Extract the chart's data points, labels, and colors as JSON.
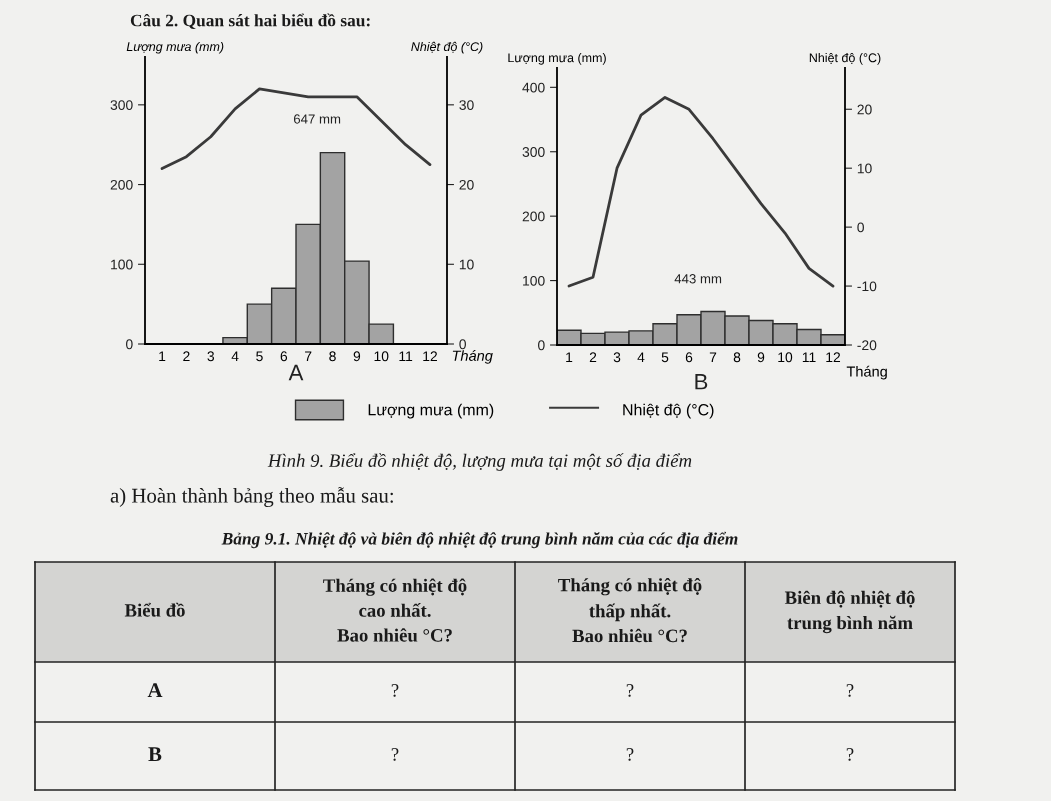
{
  "chart_data": [
    {
      "type": "other",
      "title": "Câu 2. Quan sát hai biểu đồ sau:"
    },
    {
      "type": "bar",
      "title": "A",
      "xlabel": "Tháng",
      "ylabel": "Lượng mưa (mm)",
      "y2label": "Nhiệt độ (°C)",
      "categories": [
        "1",
        "2",
        "3",
        "4",
        "5",
        "6",
        "7",
        "8",
        "9",
        "10",
        "11",
        "12"
      ],
      "series": [
        {
          "name": "Lượng mưa (mm)",
          "color": "#a3a3a3",
          "values": [
            0,
            0,
            0,
            8,
            50,
            70,
            150,
            240,
            104,
            25,
            0,
            0
          ]
        },
        {
          "name": "Nhiệt độ (°C)",
          "type": "line",
          "axis": "y2",
          "color": "#3a3a3a",
          "values": [
            22,
            23.5,
            26,
            29.5,
            32,
            31.5,
            31,
            31,
            31,
            28,
            25,
            22.5
          ]
        }
      ],
      "ylim": [
        0,
        360
      ],
      "yticks": [
        0,
        100,
        200,
        300
      ],
      "y2lim": [
        0,
        36
      ],
      "y2ticks": [
        0,
        10,
        20,
        30
      ],
      "annotations": [
        "647 mm"
      ],
      "legend": "bottom"
    },
    {
      "type": "bar",
      "title": "B",
      "xlabel": "Tháng",
      "ylabel": "Lượng mưa (mm)",
      "y2label": "Nhiệt độ (°C)",
      "categories": [
        "1",
        "2",
        "3",
        "4",
        "5",
        "6",
        "7",
        "8",
        "9",
        "10",
        "11",
        "12"
      ],
      "series": [
        {
          "color": "#a3a3a3",
          "values": [
            23,
            18,
            20,
            22,
            33,
            47,
            52,
            45,
            38,
            33,
            24,
            16
          ]
        },
        {
          "type": "line",
          "axis": "y2",
          "color": "#3a3a3a",
          "values": [
            -10,
            -8.5,
            10,
            19,
            22,
            20,
            15,
            9.5,
            4,
            -1,
            -7,
            -10
          ]
        }
      ],
      "ylim": [
        0,
        430
      ],
      "yticks": [
        0,
        100,
        200,
        300,
        400
      ],
      "y2lim": [
        -20,
        27
      ],
      "y2ticks": [
        -20,
        -10,
        0,
        10,
        20
      ],
      "annotations": [
        "443 mm"
      ]
    },
    {
      "type": "other",
      "title": "Bảng 9.1. Nhiệt độ và biên độ nhiệt độ trung bình năm của các địa điểm",
      "annotations": [
        "Hình 9. Biểu đồ nhiệt độ, lượng mưa tại một số địa điểm",
        "a) Hoàn thành bảng theo mẫu sau:"
      ],
      "ylabel": "Biểu đồ",
      "categories": [
        "Tháng có nhiệt độ\ncao nhất.\nBao nhiêu °C?",
        "Tháng có nhiệt độ\nthấp nhất.\nBao nhiêu °C?",
        "Biên độ nhiệt độ\ntrung bình năm"
      ],
      "y_categories": [
        "A",
        "B"
      ],
      "cell_labels": [
        [
          "?",
          "?",
          "?"
        ],
        [
          "?",
          "?",
          "?"
        ]
      ]
    }
  ]
}
